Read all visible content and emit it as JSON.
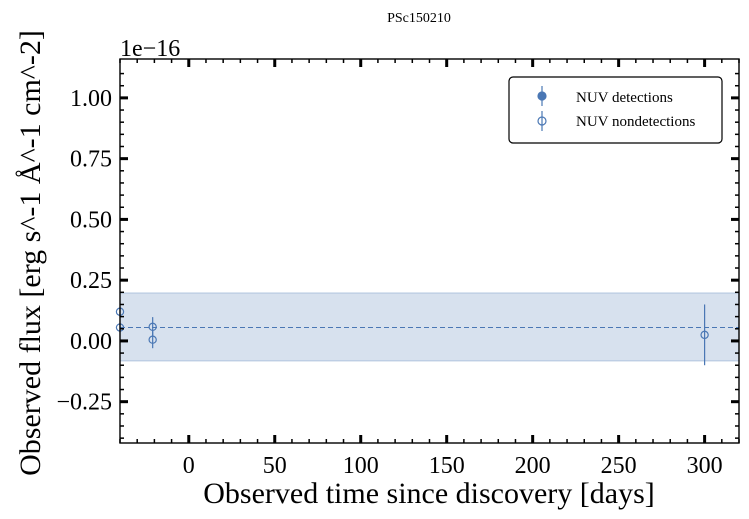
{
  "chart_data": {
    "type": "scatter",
    "title": "PSc150210",
    "xlabel": "Observed time since discovery [days]",
    "ylabel": "Observed flux [erg s^-1 Å^-1 cm^-2]",
    "y_offset_label": "1e−16",
    "xlim": [
      -40,
      320
    ],
    "ylim": [
      -0.42,
      1.16
    ],
    "xticks": [
      0,
      50,
      100,
      150,
      200,
      250,
      300
    ],
    "xtick_labels": [
      "0",
      "50",
      "100",
      "150",
      "200",
      "250",
      "300"
    ],
    "yticks": [
      -0.25,
      0.0,
      0.25,
      0.5,
      0.75,
      1.0
    ],
    "ytick_labels": [
      "−0.25",
      "0.00",
      "0.25",
      "0.50",
      "0.75",
      "1.00"
    ],
    "band": {
      "mean": 0.055,
      "lower": -0.082,
      "upper": 0.197,
      "color": "#b0c4de"
    },
    "series": [
      {
        "name": "NUV detections",
        "marker": "filled-circle",
        "color": "#4a77b4",
        "points": []
      },
      {
        "name": "NUV nondetections",
        "marker": "open-circle",
        "color": "#4a77b4",
        "points": [
          {
            "x": -40,
            "y": 0.12,
            "err": 0.02
          },
          {
            "x": -40,
            "y": 0.055,
            "err": 0.02
          },
          {
            "x": -21,
            "y": 0.058,
            "err": 0.04
          },
          {
            "x": -21,
            "y": 0.005,
            "err": 0.035
          },
          {
            "x": 300,
            "y": 0.025,
            "err": 0.125
          }
        ]
      }
    ],
    "legend": {
      "location": "upper right",
      "entries": [
        "NUV detections",
        "NUV nondetections"
      ]
    }
  }
}
